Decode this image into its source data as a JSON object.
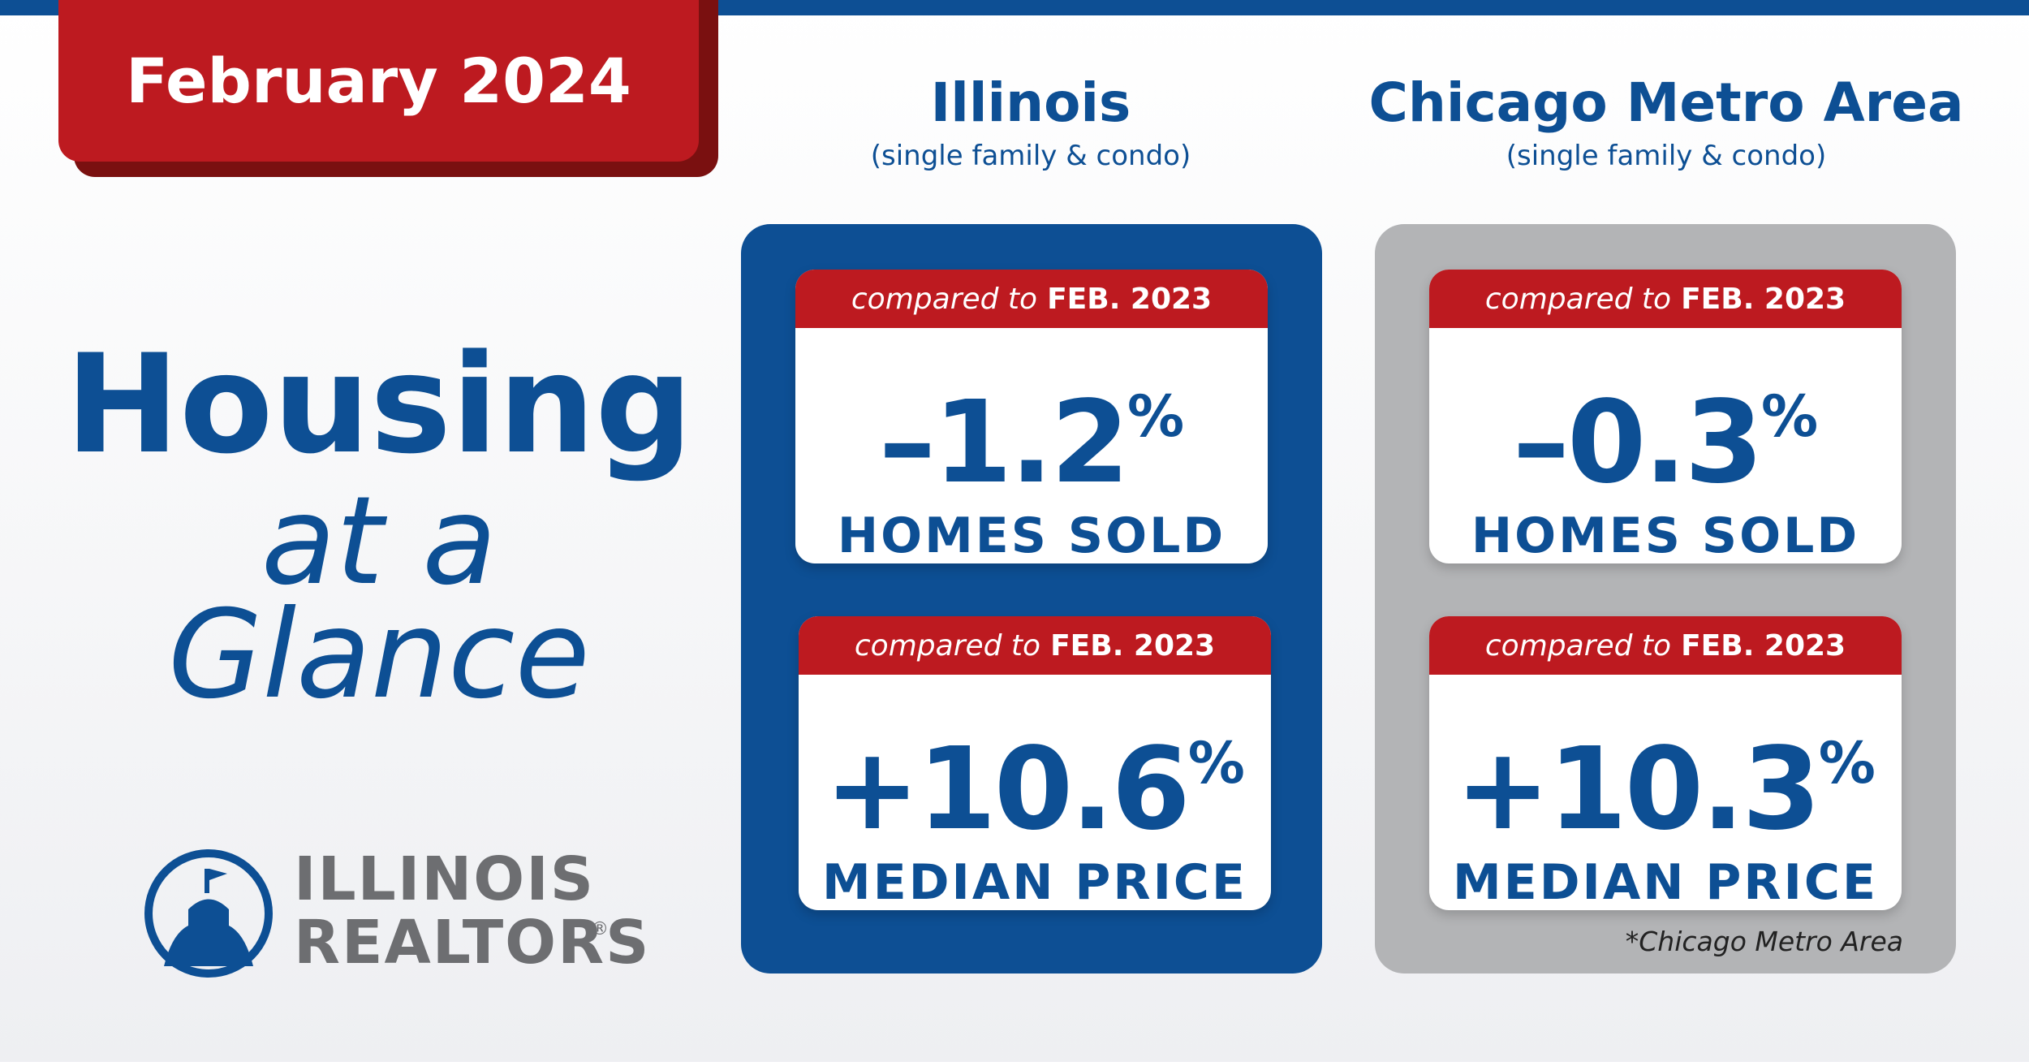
{
  "badge": "February 2024",
  "headline": {
    "line1": "Housing",
    "line2": "at a",
    "line3": "Glance"
  },
  "logo": {
    "line1": "ILLINOIS",
    "line2": "REALTORS",
    "mark": "®"
  },
  "panels": [
    {
      "title": "Illinois",
      "subtitle": "(single family & condo)",
      "cards": [
        {
          "compared_prefix": "compared to",
          "compared_period": "FEB. 2023",
          "value": "–1.2",
          "unit": "%",
          "label": "HOMES SOLD"
        },
        {
          "compared_prefix": "compared to",
          "compared_period": "FEB. 2023",
          "value": "+10.6",
          "unit": "%",
          "label": "MEDIAN PRICE"
        }
      ]
    },
    {
      "title": "Chicago Metro Area",
      "subtitle": "(single family & condo)",
      "cards": [
        {
          "compared_prefix": "compared to",
          "compared_period": "FEB. 2023",
          "value": "–0.3",
          "unit": "%",
          "label": "HOMES SOLD"
        },
        {
          "compared_prefix": "compared to",
          "compared_period": "FEB. 2023",
          "value": "+10.3",
          "unit": "%",
          "label": "MEDIAN PRICE"
        }
      ]
    }
  ],
  "footnote": "*Chicago Metro Area"
}
